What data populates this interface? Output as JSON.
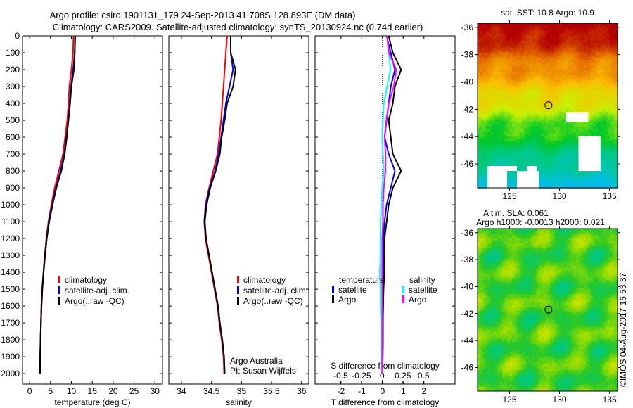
{
  "title": {
    "line1": "Argo profile: csiro 1901131_179 24-Sep-2013 41.708S 128.893E (DM data)",
    "line2": "Climatology: CARS2009. Satellite-adjusted climatology: synTS_20130924.nc (0.74d earlier)"
  },
  "colors": {
    "climatology": "#ff0000",
    "satellite": "#0000ff",
    "argo": "#000000",
    "sal_satellite": "#00ffff",
    "sal_argo": "#ff00ff"
  },
  "chart_data": [
    {
      "type": "line",
      "id": "temperature",
      "xlabel": "temperature (deg C)",
      "ylabel": "",
      "xlim": [
        -1.7,
        31.8
      ],
      "ylim": [
        2062,
        0
      ],
      "xticks": [
        0,
        5,
        10,
        15,
        20,
        25,
        30
      ],
      "yticks": [
        0,
        100,
        200,
        300,
        400,
        500,
        600,
        700,
        800,
        900,
        1000,
        1100,
        1200,
        1300,
        1400,
        1500,
        1600,
        1700,
        1800,
        1900,
        2000
      ],
      "depth": [
        0,
        100,
        200,
        300,
        400,
        500,
        600,
        700,
        800,
        900,
        1000,
        1100,
        1200,
        1300,
        1400,
        1500,
        1600,
        1700,
        1800,
        1900,
        2000
      ],
      "legend": [
        "climatology",
        "satellite-adj. clim.",
        "Argo(..raw -QC)"
      ],
      "series": [
        {
          "name": "climatology",
          "color": "#ff0000",
          "values": [
            10.5,
            10.4,
            10.0,
            9.5,
            9.3,
            9.0,
            8.5,
            8.0,
            7.0,
            6.0,
            5.2,
            4.5,
            4.0,
            3.6,
            3.3,
            3.0,
            2.8,
            2.7,
            2.6,
            2.5,
            2.5
          ]
        },
        {
          "name": "satellite-adj. clim.",
          "color": "#0000ff",
          "values": [
            10.9,
            10.8,
            10.4,
            9.9,
            9.6,
            9.3,
            8.8,
            8.3,
            7.4,
            6.3,
            5.4,
            4.6,
            4.1,
            3.7,
            3.35,
            3.05,
            2.85,
            2.72,
            2.62,
            2.55,
            2.5
          ]
        },
        {
          "name": "Argo(..raw -QC)",
          "color": "#000000",
          "values": [
            10.9,
            10.8,
            10.6,
            10.0,
            9.7,
            9.3,
            8.9,
            8.4,
            7.6,
            6.4,
            5.5,
            4.7,
            4.1,
            3.7,
            3.35,
            3.05,
            2.85,
            2.72,
            2.62,
            2.55,
            2.5
          ]
        }
      ]
    },
    {
      "type": "line",
      "id": "salinity",
      "xlabel": "salinity",
      "xlim": [
        33.79,
        36.12
      ],
      "ylim": [
        2062,
        0
      ],
      "xticks": [
        34,
        34.5,
        35,
        35.5,
        36
      ],
      "depth": [
        0,
        100,
        200,
        300,
        400,
        500,
        600,
        700,
        800,
        900,
        1000,
        1100,
        1200,
        1300,
        1400,
        1500,
        1600,
        1700,
        1800,
        1900,
        2000
      ],
      "legend": [
        "climatology",
        "satellite-adj. clim.",
        "Argo(..raw -QC)"
      ],
      "annotation": [
        "Argo Australia",
        "PI: Susan Wijffels"
      ],
      "series": [
        {
          "name": "climatology",
          "color": "#ff0000",
          "values": [
            34.76,
            34.74,
            34.72,
            34.7,
            34.68,
            34.66,
            34.63,
            34.6,
            34.53,
            34.46,
            34.4,
            34.38,
            34.4,
            34.45,
            34.5,
            34.55,
            34.6,
            34.63,
            34.67,
            34.7,
            34.71
          ]
        },
        {
          "name": "satellite-adj. clim.",
          "color": "#0000ff",
          "values": [
            34.82,
            34.82,
            34.86,
            34.8,
            34.74,
            34.7,
            34.66,
            34.62,
            34.56,
            34.47,
            34.41,
            34.38,
            34.41,
            34.46,
            34.51,
            34.56,
            34.61,
            34.64,
            34.68,
            34.71,
            34.72
          ]
        },
        {
          "name": "Argo(..raw -QC)",
          "color": "#000000",
          "values": [
            34.82,
            34.82,
            34.9,
            34.86,
            34.76,
            34.72,
            34.67,
            34.64,
            34.57,
            34.48,
            34.42,
            34.39,
            34.41,
            34.46,
            34.51,
            34.56,
            34.61,
            34.64,
            34.68,
            34.71,
            34.72
          ]
        }
      ]
    },
    {
      "type": "line",
      "id": "difference",
      "xlabel": "T difference from climatology",
      "x2label": "S difference from climatology",
      "xlim": [
        -3.25,
        3.5
      ],
      "x2lim": [
        -0.81,
        0.88
      ],
      "ylim": [
        2062,
        0
      ],
      "xticks": [
        -2,
        -1,
        0,
        1,
        2
      ],
      "x2ticks": [
        "-0.5",
        "-0.25",
        "0",
        "0.25",
        "0.5"
      ],
      "x2tickvals": [
        -0.5,
        -0.25,
        0,
        0.25,
        0.5
      ],
      "depth": [
        0,
        100,
        200,
        300,
        400,
        500,
        600,
        700,
        800,
        900,
        1000,
        1100,
        1200,
        1300,
        1400,
        1500,
        1600,
        1700,
        1800,
        1900,
        2000
      ],
      "legend": {
        "temperature_title": "temperature",
        "salinity_title": "salinity",
        "items": [
          "satellite",
          "Argo",
          "satellite",
          "Argo"
        ]
      },
      "series": [
        {
          "name": "temperature satellite",
          "color": "#0000ff",
          "scale": "T",
          "values": [
            0.2,
            0.4,
            0.6,
            0.4,
            0.3,
            0.2,
            0.1,
            0.3,
            0.6,
            0.4,
            0.2,
            0.1,
            0.05,
            0.05,
            0.05,
            0.05,
            0.03,
            0.02,
            0.02,
            0.01,
            0.0
          ]
        },
        {
          "name": "temperature Argo",
          "color": "#000000",
          "scale": "T",
          "values": [
            0.3,
            0.5,
            0.9,
            0.6,
            0.5,
            0.3,
            0.4,
            0.5,
            0.9,
            0.5,
            0.3,
            0.2,
            0.1,
            0.1,
            0.1,
            0.05,
            0.03,
            0.02,
            0.02,
            0.01,
            0.0
          ]
        },
        {
          "name": "salinity satellite",
          "color": "#00ffff",
          "scale": "S",
          "values": [
            0.06,
            0.08,
            0.1,
            0.06,
            0.02,
            0.01,
            0.0,
            0.01,
            0.02,
            0.0,
            -0.01,
            -0.02,
            -0.02,
            -0.02,
            -0.03,
            -0.02,
            -0.02,
            -0.01,
            -0.01,
            -0.01,
            0.0
          ]
        },
        {
          "name": "salinity Argo",
          "color": "#ff00ff",
          "scale": "S",
          "values": [
            0.06,
            0.08,
            0.17,
            0.14,
            0.08,
            0.05,
            0.03,
            0.04,
            0.04,
            0.02,
            0.01,
            0.01,
            0.0,
            0.0,
            0.0,
            0.0,
            0.0,
            0.0,
            0.0,
            0.0,
            0.0
          ]
        }
      ]
    },
    {
      "type": "heatmap",
      "id": "sst-map",
      "title": "sat. SST: 10.8 Argo: 10.9",
      "xlim": [
        121.8,
        135.8
      ],
      "ylim": [
        -47.75,
        -35.7
      ],
      "xticks": [
        125,
        130,
        135
      ],
      "yticks": [
        -36,
        -38,
        -40,
        -42,
        -44,
        -46
      ],
      "marker": {
        "lon": 128.893,
        "lat": -41.708
      }
    },
    {
      "type": "heatmap",
      "id": "sla-map",
      "title": "Altim. SLA: 0.061",
      "subtitle": "Argo h1000: -0.0013 h2000: 0.021",
      "xlim": [
        121.8,
        135.8
      ],
      "ylim": [
        -47.75,
        -35.7
      ],
      "xticks": [
        125,
        130,
        135
      ],
      "yticks": [
        -36,
        -38,
        -40,
        -42,
        -44,
        -46
      ],
      "marker": {
        "lon": 128.893,
        "lat": -41.708
      }
    }
  ],
  "credit": "©IMOS 04-Aug-2017 16:53:37"
}
